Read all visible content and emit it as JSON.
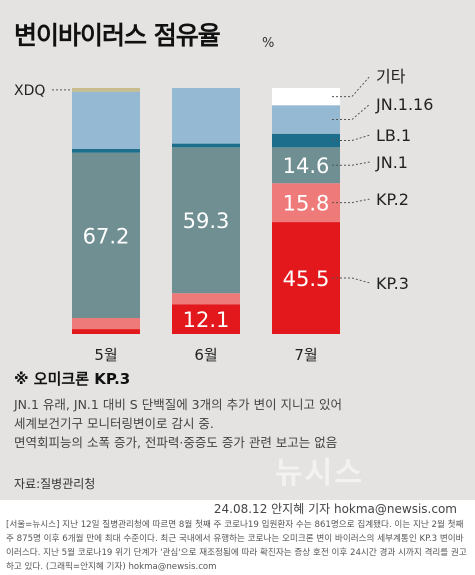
{
  "title": "변이바이러스 점유율",
  "unit": "%",
  "chart_data": {
    "type": "bar",
    "stacked": true,
    "categories": [
      "5월",
      "6월",
      "7월"
    ],
    "series": [
      {
        "name": "KP.3",
        "color": "#e3181c",
        "values": [
          2.0,
          12.1,
          45.5
        ],
        "labels": [
          "",
          "12.1",
          "45.5"
        ]
      },
      {
        "name": "KP.2",
        "color": "#ee7b7a",
        "values": [
          4.5,
          4.5,
          15.8
        ],
        "labels": [
          "",
          "",
          "15.8"
        ]
      },
      {
        "name": "JN.1",
        "color": "#6f8f92",
        "values": [
          67.2,
          59.3,
          14.6
        ],
        "labels": [
          "67.2",
          "59.3",
          "14.6"
        ]
      },
      {
        "name": "LB.1",
        "color": "#1d6e8c",
        "values": [
          1.5,
          1.5,
          5.5
        ],
        "labels": [
          "",
          "",
          ""
        ]
      },
      {
        "name": "JN.1.16",
        "color": "#96b9d3",
        "values": [
          23.3,
          22.6,
          11.6
        ],
        "labels": [
          "",
          "",
          ""
        ]
      },
      {
        "name": "XDQ",
        "color": "#c7bc8e",
        "values": [
          1.5,
          0,
          0
        ],
        "labels": [
          "",
          "",
          ""
        ]
      },
      {
        "name": "기타",
        "color": "#ffffff",
        "values": [
          0,
          0,
          7.0
        ],
        "labels": [
          "",
          "",
          ""
        ]
      }
    ],
    "ylim": [
      0,
      100
    ],
    "legend": [
      "기타",
      "JN.1.16",
      "LB.1",
      "JN.1",
      "KP.2",
      "KP.3",
      "XDQ"
    ]
  },
  "note": {
    "title": "※ 오미크론 KP.3",
    "lines": [
      "JN.1 유래, JN.1 대비 S 단백질에 3개의 추가 변이 지니고 있어",
      "세계보건기구 모니터링변이로 감시 중.",
      "면역회피능의 소폭 증가, 전파력·중증도 증가 관련 보고는 없음"
    ]
  },
  "source": "자료:질병관리청",
  "watermark": "뉴시스",
  "credit": "24.08.12 안지혜 기자 hokma@newsis.com",
  "caption": "[서울=뉴시스] 지난 12일 질병관리청에 따르면 8월 첫째 주 코로나19 입원환자 수는 861명으로 집계됐다. 이는 지난 2월 첫째 주 875명 이후 6개월 만에 최대 수준이다. 최근 국내에서 유행하는 코로나는 오미크론 변이 바이러스의 세부계통인 KP.3 변이바이러스다. 지난 5월 코로나19 위기 단계가 '관심'으로 재조정됨에 따라 확진자는 증상 호전 이후 24시간 경과 시까지 격리를 권고하고 있다. (그래픽=안지혜 기자) hokma@newsis.com"
}
